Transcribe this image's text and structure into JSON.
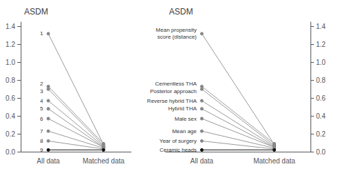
{
  "chart_data": [
    {
      "type": "line",
      "title": "ASDM",
      "categories": [
        "All data",
        "Matched data"
      ],
      "ylim": [
        0,
        1.45
      ],
      "yticks": [
        {
          "value": 0,
          "label": "0.0"
        },
        0.2,
        0.4,
        0.6,
        0.8,
        {
          "value": 1,
          "label": "1.0"
        },
        1.2,
        1.4
      ],
      "grid": false,
      "series": [
        {
          "name": "1",
          "color": "#999999",
          "colors": [
            "#888888",
            "#888888"
          ],
          "values": [
            1.32,
            0.08
          ]
        },
        {
          "name": "2",
          "color": "#999999",
          "colors": [
            "#888888",
            "#888888"
          ],
          "values": [
            0.73,
            0.09
          ]
        },
        {
          "name": "3",
          "color": "#999999",
          "colors": [
            "#888888",
            "#888888"
          ],
          "values": [
            0.7,
            0.07
          ]
        },
        {
          "name": "4",
          "color": "#999999",
          "colors": [
            "#888888",
            "#888888"
          ],
          "values": [
            0.57,
            0.06
          ]
        },
        {
          "name": "5",
          "color": "#999999",
          "colors": [
            "#888888",
            "#888888"
          ],
          "values": [
            0.48,
            0.05
          ]
        },
        {
          "name": "6",
          "color": "#999999",
          "colors": [
            "#888888",
            "#888888"
          ],
          "values": [
            0.37,
            0.05
          ]
        },
        {
          "name": "7",
          "color": "#999999",
          "colors": [
            "#888888",
            "#888888"
          ],
          "values": [
            0.23,
            0.04
          ]
        },
        {
          "name": "8",
          "color": "#999999",
          "colors": [
            "#888888",
            "#888888"
          ],
          "values": [
            0.12,
            0.03
          ]
        },
        {
          "name": "9",
          "color": "#111111",
          "colors": [
            "#111111",
            "#111111"
          ],
          "values": [
            0.02,
            0.02
          ]
        }
      ]
    },
    {
      "type": "line",
      "title": "ASDM",
      "categories": [
        "All data",
        "Matched data"
      ],
      "ylim": [
        0,
        1.45
      ],
      "yticks": [
        {
          "value": 0,
          "label": "0.0"
        },
        0.2,
        0.4,
        0.6,
        0.8,
        {
          "value": 1,
          "label": "1.0"
        },
        1.2,
        1.4
      ],
      "grid": false,
      "series": [
        {
          "name": "Mean propensity\nscore (distance)",
          "color": "#999999",
          "colors": [
            "#888888",
            "#888888"
          ],
          "values": [
            1.32,
            0.08
          ]
        },
        {
          "name": "Cementless THA",
          "color": "#999999",
          "colors": [
            "#888888",
            "#888888"
          ],
          "values": [
            0.73,
            0.09
          ]
        },
        {
          "name": "Posterior approach",
          "color": "#999999",
          "colors": [
            "#888888",
            "#888888"
          ],
          "values": [
            0.7,
            0.07
          ]
        },
        {
          "name": "Reverse hybrid THA",
          "color": "#999999",
          "colors": [
            "#888888",
            "#888888"
          ],
          "values": [
            0.57,
            0.06
          ]
        },
        {
          "name": "Hybrid THA",
          "color": "#999999",
          "colors": [
            "#888888",
            "#888888"
          ],
          "values": [
            0.48,
            0.05
          ]
        },
        {
          "name": "Male sex",
          "color": "#999999",
          "colors": [
            "#888888",
            "#888888"
          ],
          "values": [
            0.37,
            0.05
          ]
        },
        {
          "name": "Mean age",
          "color": "#999999",
          "colors": [
            "#888888",
            "#888888"
          ],
          "values": [
            0.23,
            0.04
          ]
        },
        {
          "name": "Year of surgery",
          "color": "#999999",
          "colors": [
            "#888888",
            "#888888"
          ],
          "values": [
            0.12,
            0.03
          ]
        },
        {
          "name": "Ceramic heads",
          "color": "#111111",
          "colors": [
            "#111111",
            "#111111"
          ],
          "values": [
            0.02,
            0.02
          ]
        }
      ]
    }
  ]
}
